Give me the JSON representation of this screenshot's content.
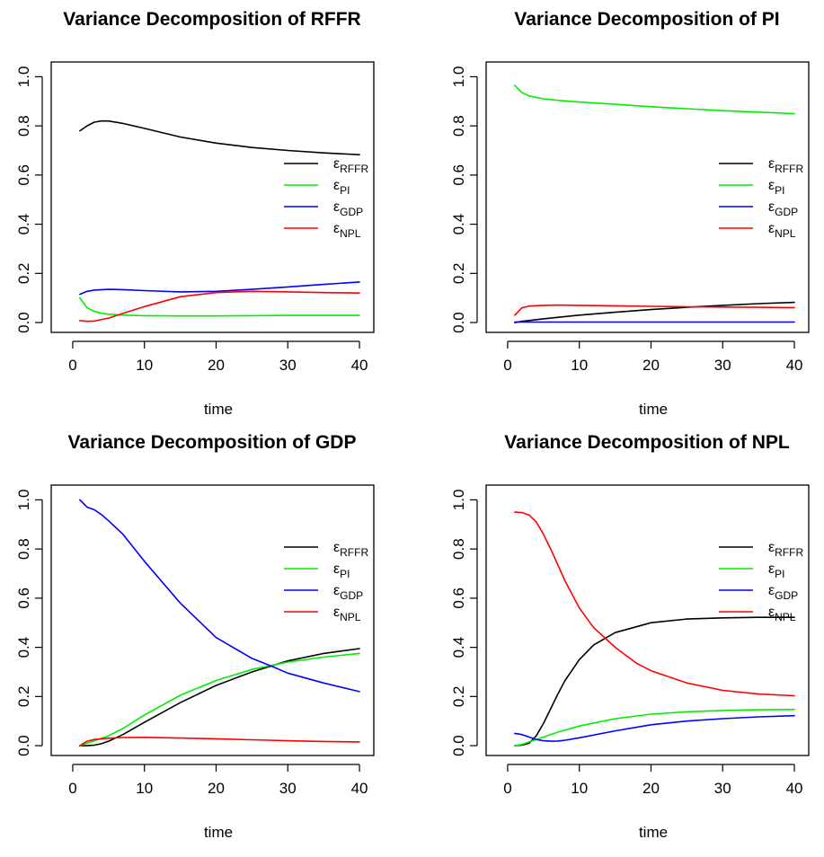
{
  "chart_data": [
    {
      "type": "line",
      "title": "Variance Decomposition of RFFR",
      "xlabel": "time",
      "ylabel": "",
      "xlim": [
        1,
        40
      ],
      "ylim": [
        0,
        1
      ],
      "xticks": [
        "0",
        "10",
        "20",
        "30",
        "40"
      ],
      "yticks": [
        "0.0",
        "0.2",
        "0.4",
        "0.6",
        "0.8",
        "1.0"
      ],
      "legend_position": "right-middle",
      "series": [
        {
          "name": "εRFFR",
          "base": "ε",
          "sub": "RFFR",
          "color": "#000000",
          "x": [
            1,
            2,
            3,
            4,
            5,
            7,
            10,
            15,
            20,
            25,
            30,
            35,
            40
          ],
          "y": [
            0.78,
            0.8,
            0.815,
            0.82,
            0.82,
            0.81,
            0.79,
            0.755,
            0.73,
            0.712,
            0.7,
            0.69,
            0.683
          ]
        },
        {
          "name": "εPI",
          "base": "ε",
          "sub": "PI",
          "color": "#00ee00",
          "x": [
            1,
            2,
            3,
            4,
            5,
            7,
            10,
            15,
            20,
            25,
            30,
            35,
            40
          ],
          "y": [
            0.1,
            0.06,
            0.045,
            0.038,
            0.034,
            0.03,
            0.028,
            0.027,
            0.027,
            0.028,
            0.029,
            0.029,
            0.029
          ]
        },
        {
          "name": "εGDP",
          "base": "ε",
          "sub": "GDP",
          "color": "#0000ff",
          "x": [
            1,
            2,
            3,
            5,
            7,
            10,
            15,
            20,
            25,
            30,
            35,
            40
          ],
          "y": [
            0.115,
            0.127,
            0.132,
            0.135,
            0.134,
            0.13,
            0.125,
            0.127,
            0.135,
            0.145,
            0.155,
            0.165
          ]
        },
        {
          "name": "εNPL",
          "base": "ε",
          "sub": "NPL",
          "color": "#ff0000",
          "x": [
            1,
            2,
            3,
            5,
            7,
            10,
            15,
            20,
            25,
            30,
            35,
            40
          ],
          "y": [
            0.008,
            0.005,
            0.006,
            0.018,
            0.037,
            0.065,
            0.105,
            0.122,
            0.127,
            0.125,
            0.122,
            0.12
          ]
        }
      ]
    },
    {
      "type": "line",
      "title": "Variance Decomposition of PI",
      "xlabel": "time",
      "ylabel": "",
      "xlim": [
        1,
        40
      ],
      "ylim": [
        0,
        1
      ],
      "xticks": [
        "0",
        "10",
        "20",
        "30",
        "40"
      ],
      "yticks": [
        "0.0",
        "0.2",
        "0.4",
        "0.6",
        "0.8",
        "1.0"
      ],
      "legend_position": "right-middle",
      "series": [
        {
          "name": "εRFFR",
          "base": "ε",
          "sub": "RFFR",
          "color": "#000000",
          "x": [
            1,
            2,
            5,
            10,
            15,
            20,
            25,
            30,
            35,
            40
          ],
          "y": [
            0.0,
            0.005,
            0.015,
            0.03,
            0.042,
            0.053,
            0.062,
            0.07,
            0.077,
            0.082
          ]
        },
        {
          "name": "εPI",
          "base": "ε",
          "sub": "PI",
          "color": "#00ee00",
          "x": [
            1,
            2,
            3,
            5,
            7,
            10,
            15,
            20,
            25,
            30,
            35,
            40
          ],
          "y": [
            0.965,
            0.935,
            0.922,
            0.91,
            0.904,
            0.897,
            0.888,
            0.878,
            0.87,
            0.862,
            0.856,
            0.85
          ]
        },
        {
          "name": "εGDP",
          "base": "ε",
          "sub": "GDP",
          "color": "#0000ff",
          "x": [
            1,
            10,
            20,
            30,
            40
          ],
          "y": [
            0.002,
            0.002,
            0.002,
            0.002,
            0.002
          ]
        },
        {
          "name": "εNPL",
          "base": "ε",
          "sub": "NPL",
          "color": "#ff0000",
          "x": [
            1,
            2,
            3,
            5,
            7,
            10,
            15,
            20,
            25,
            30,
            35,
            40
          ],
          "y": [
            0.03,
            0.06,
            0.067,
            0.07,
            0.071,
            0.07,
            0.068,
            0.066,
            0.064,
            0.063,
            0.062,
            0.061
          ]
        }
      ]
    },
    {
      "type": "line",
      "title": "Variance Decomposition of GDP",
      "xlabel": "time",
      "ylabel": "",
      "xlim": [
        1,
        40
      ],
      "ylim": [
        0,
        1
      ],
      "xticks": [
        "0",
        "10",
        "20",
        "30",
        "40"
      ],
      "yticks": [
        "0.0",
        "0.2",
        "0.4",
        "0.6",
        "0.8",
        "1.0"
      ],
      "legend_position": "top-right",
      "series": [
        {
          "name": "εRFFR",
          "base": "ε",
          "sub": "RFFR",
          "color": "#000000",
          "x": [
            1,
            2,
            3,
            4,
            5,
            7,
            10,
            15,
            20,
            25,
            30,
            35,
            40
          ],
          "y": [
            0.0,
            0.0,
            0.002,
            0.008,
            0.018,
            0.045,
            0.095,
            0.175,
            0.245,
            0.3,
            0.345,
            0.375,
            0.395
          ]
        },
        {
          "name": "εPI",
          "base": "ε",
          "sub": "PI",
          "color": "#00ee00",
          "x": [
            1,
            2,
            3,
            5,
            7,
            10,
            15,
            20,
            25,
            30,
            35,
            40
          ],
          "y": [
            0.0,
            0.01,
            0.02,
            0.04,
            0.07,
            0.125,
            0.205,
            0.265,
            0.31,
            0.34,
            0.36,
            0.375
          ]
        },
        {
          "name": "εGDP",
          "base": "ε",
          "sub": "GDP",
          "color": "#0000ff",
          "x": [
            1,
            2,
            3,
            4,
            5,
            7,
            10,
            15,
            20,
            25,
            28,
            30,
            35,
            40
          ],
          "y": [
            1.0,
            0.97,
            0.96,
            0.94,
            0.915,
            0.86,
            0.75,
            0.58,
            0.44,
            0.355,
            0.32,
            0.295,
            0.255,
            0.22
          ]
        },
        {
          "name": "εNPL",
          "base": "ε",
          "sub": "NPL",
          "color": "#ff0000",
          "x": [
            1,
            2,
            3,
            5,
            7,
            10,
            15,
            20,
            25,
            30,
            35,
            40
          ],
          "y": [
            0.0,
            0.018,
            0.025,
            0.03,
            0.033,
            0.034,
            0.031,
            0.028,
            0.024,
            0.02,
            0.017,
            0.015
          ]
        }
      ]
    },
    {
      "type": "line",
      "title": "Variance Decomposition of NPL",
      "xlabel": "time",
      "ylabel": "",
      "xlim": [
        1,
        40
      ],
      "ylim": [
        0,
        1
      ],
      "xticks": [
        "0",
        "10",
        "20",
        "30",
        "40"
      ],
      "yticks": [
        "0.0",
        "0.2",
        "0.4",
        "0.6",
        "0.8",
        "1.0"
      ],
      "legend_position": "top-right",
      "series": [
        {
          "name": "εRFFR",
          "base": "ε",
          "sub": "RFFR",
          "color": "#000000",
          "x": [
            1,
            2,
            3,
            4,
            5,
            6,
            7,
            8,
            10,
            12,
            15,
            20,
            25,
            30,
            35,
            40
          ],
          "y": [
            0.0,
            0.002,
            0.01,
            0.04,
            0.09,
            0.15,
            0.21,
            0.265,
            0.35,
            0.41,
            0.46,
            0.5,
            0.515,
            0.52,
            0.522,
            0.522
          ]
        },
        {
          "name": "εPI",
          "base": "ε",
          "sub": "PI",
          "color": "#00ee00",
          "x": [
            1,
            2,
            3,
            5,
            7,
            10,
            15,
            20,
            25,
            30,
            35,
            40
          ],
          "y": [
            0.0,
            0.005,
            0.015,
            0.035,
            0.055,
            0.08,
            0.11,
            0.128,
            0.138,
            0.143,
            0.146,
            0.147
          ]
        },
        {
          "name": "εGDP",
          "base": "ε",
          "sub": "GDP",
          "color": "#0000ff",
          "x": [
            1,
            2,
            3,
            4,
            5,
            6,
            7,
            8,
            10,
            15,
            20,
            25,
            30,
            35,
            40
          ],
          "y": [
            0.05,
            0.045,
            0.035,
            0.025,
            0.02,
            0.018,
            0.019,
            0.022,
            0.032,
            0.06,
            0.085,
            0.1,
            0.11,
            0.117,
            0.122
          ]
        },
        {
          "name": "εNPL",
          "base": "ε",
          "sub": "NPL",
          "color": "#ff0000",
          "x": [
            1,
            2,
            3,
            4,
            5,
            6,
            7,
            8,
            10,
            12,
            15,
            18,
            20,
            25,
            30,
            35,
            40
          ],
          "y": [
            0.95,
            0.948,
            0.938,
            0.91,
            0.86,
            0.8,
            0.735,
            0.67,
            0.56,
            0.48,
            0.4,
            0.335,
            0.305,
            0.255,
            0.225,
            0.21,
            0.203
          ]
        }
      ]
    }
  ]
}
